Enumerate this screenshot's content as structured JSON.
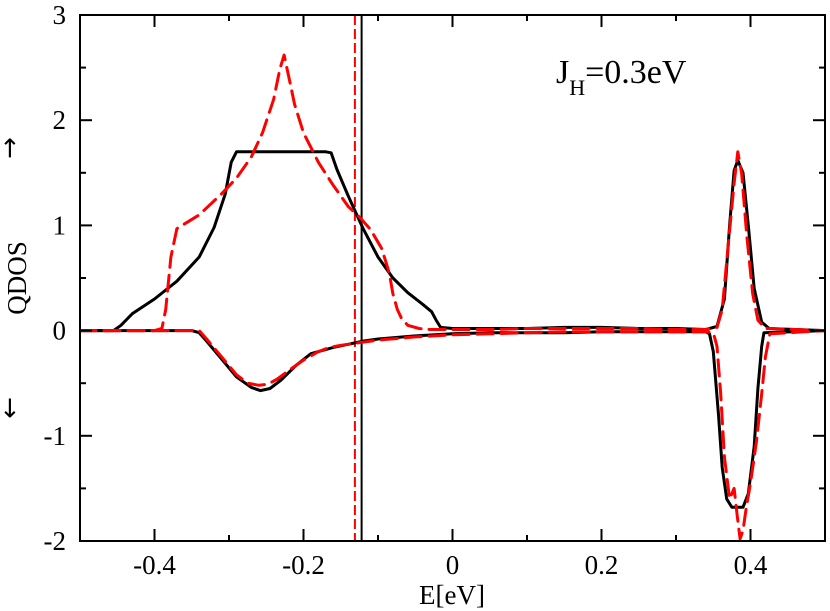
{
  "chart_data": {
    "type": "line",
    "title": "",
    "xlabel": "E[eV]",
    "ylabel": "QDOS",
    "xlim": [
      -0.5,
      0.5
    ],
    "ylim": [
      -2,
      3
    ],
    "xticks": [
      -0.4,
      -0.2,
      0,
      0.2,
      0.4
    ],
    "xtick_labels": [
      "-0.4",
      "-0.2",
      "0",
      "0.2",
      "0.4"
    ],
    "yticks": [
      -2,
      -1,
      0,
      1,
      2,
      3
    ],
    "ytick_labels": [
      "-2",
      "-1",
      "0",
      "1",
      "2",
      "3"
    ],
    "up_arrow": "→",
    "down_arrow": "←",
    "annotation": {
      "main": "J",
      "sub": "H",
      "rest": "=0.3eV"
    },
    "grid": false,
    "vlines": [
      {
        "name": "fermi-level-solid",
        "x": -0.122,
        "color": "#000000",
        "style": "solid"
      },
      {
        "name": "fermi-level-dashed",
        "x": -0.131,
        "color": "#ff0000",
        "style": "dashed"
      }
    ],
    "series": [
      {
        "name": "solid-up",
        "color": "#000000",
        "style": "solid",
        "x": [
          -0.5,
          -0.455,
          -0.445,
          -0.43,
          -0.4,
          -0.37,
          -0.34,
          -0.32,
          -0.305,
          -0.297,
          -0.29,
          -0.25,
          -0.2,
          -0.17,
          -0.163,
          -0.155,
          -0.14,
          -0.12,
          -0.1,
          -0.08,
          -0.06,
          -0.04,
          -0.028,
          -0.022,
          -0.016,
          0.0,
          0.05,
          0.1,
          0.15,
          0.2,
          0.25,
          0.3,
          0.34,
          0.355,
          0.365,
          0.372,
          0.378,
          0.383,
          0.39,
          0.397,
          0.405,
          0.415,
          0.425,
          0.5
        ],
        "y": [
          0,
          0,
          0.05,
          0.16,
          0.3,
          0.47,
          0.7,
          0.98,
          1.3,
          1.6,
          1.7,
          1.7,
          1.7,
          1.7,
          1.69,
          1.53,
          1.28,
          0.97,
          0.7,
          0.5,
          0.36,
          0.25,
          0.18,
          0.1,
          0.03,
          0.02,
          0.02,
          0.02,
          0.03,
          0.03,
          0.02,
          0.02,
          0.01,
          0.04,
          0.3,
          1.0,
          1.52,
          1.62,
          1.5,
          1.0,
          0.4,
          0.08,
          0.02,
          0.0
        ]
      },
      {
        "name": "solid-down",
        "color": "#000000",
        "style": "solid",
        "x": [
          -0.5,
          -0.35,
          -0.34,
          -0.33,
          -0.31,
          -0.29,
          -0.27,
          -0.258,
          -0.245,
          -0.23,
          -0.21,
          -0.19,
          -0.175,
          -0.16,
          -0.14,
          -0.12,
          -0.1,
          -0.05,
          0.0,
          0.05,
          0.1,
          0.15,
          0.2,
          0.25,
          0.3,
          0.34,
          0.345,
          0.35,
          0.357,
          0.362,
          0.368,
          0.375,
          0.39,
          0.397,
          0.405,
          0.41,
          0.415,
          0.418,
          0.5
        ],
        "y": [
          0,
          0,
          -0.02,
          -0.1,
          -0.27,
          -0.44,
          -0.54,
          -0.57,
          -0.55,
          -0.47,
          -0.33,
          -0.22,
          -0.19,
          -0.16,
          -0.13,
          -0.1,
          -0.08,
          -0.05,
          -0.03,
          -0.02,
          -0.02,
          -0.02,
          -0.01,
          -0.01,
          -0.01,
          -0.01,
          -0.03,
          -0.2,
          -0.8,
          -1.3,
          -1.6,
          -1.68,
          -1.68,
          -1.55,
          -1.1,
          -0.55,
          -0.15,
          -0.02,
          0.0
        ]
      },
      {
        "name": "dashed-up",
        "color": "#ff0000",
        "style": "dashed",
        "x": [
          -0.5,
          -0.4,
          -0.39,
          -0.385,
          -0.378,
          -0.37,
          -0.34,
          -0.31,
          -0.29,
          -0.27,
          -0.255,
          -0.24,
          -0.232,
          -0.226,
          -0.22,
          -0.212,
          -0.2,
          -0.18,
          -0.16,
          -0.14,
          -0.125,
          -0.11,
          -0.095,
          -0.085,
          -0.08,
          -0.074,
          -0.068,
          -0.06,
          -0.045,
          -0.03,
          -0.015,
          0.0,
          0.05,
          0.1,
          0.15,
          0.2,
          0.25,
          0.3,
          0.34,
          0.355,
          0.362,
          0.37,
          0.378,
          0.383,
          0.388,
          0.395,
          0.403,
          0.41,
          0.42,
          0.5
        ],
        "y": [
          0,
          0,
          0.02,
          0.2,
          0.7,
          0.97,
          1.1,
          1.3,
          1.45,
          1.65,
          1.88,
          2.2,
          2.48,
          2.62,
          2.42,
          2.15,
          1.88,
          1.6,
          1.38,
          1.18,
          1.08,
          0.96,
          0.78,
          0.55,
          0.35,
          0.2,
          0.11,
          0.05,
          0.02,
          0.01,
          0.01,
          0.01,
          0.01,
          0.02,
          0.02,
          0.02,
          0.02,
          0.01,
          0.01,
          0.03,
          0.2,
          0.8,
          1.4,
          1.7,
          1.5,
          0.9,
          0.35,
          0.1,
          0.02,
          0.0
        ]
      },
      {
        "name": "dashed-down",
        "color": "#ff0000",
        "style": "dashed",
        "x": [
          -0.5,
          -0.34,
          -0.33,
          -0.31,
          -0.29,
          -0.275,
          -0.26,
          -0.248,
          -0.235,
          -0.22,
          -0.2,
          -0.18,
          -0.165,
          -0.15,
          -0.13,
          -0.1,
          -0.05,
          0.0,
          0.05,
          0.1,
          0.15,
          0.2,
          0.25,
          0.3,
          0.34,
          0.35,
          0.355,
          0.36,
          0.365,
          0.372,
          0.378,
          0.382,
          0.386,
          0.39,
          0.394,
          0.4,
          0.408,
          0.415,
          0.42,
          0.426,
          0.5
        ],
        "y": [
          0,
          0,
          -0.08,
          -0.25,
          -0.42,
          -0.5,
          -0.52,
          -0.51,
          -0.46,
          -0.38,
          -0.28,
          -0.2,
          -0.16,
          -0.14,
          -0.12,
          -0.09,
          -0.06,
          -0.04,
          -0.03,
          -0.02,
          -0.01,
          -0.01,
          -0.01,
          -0.01,
          -0.01,
          -0.02,
          -0.15,
          -0.6,
          -1.2,
          -1.6,
          -1.5,
          -1.75,
          -1.98,
          -1.9,
          -1.7,
          -1.45,
          -1.05,
          -0.6,
          -0.25,
          -0.03,
          0.0
        ]
      }
    ]
  }
}
